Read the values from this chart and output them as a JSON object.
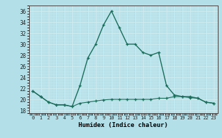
{
  "xlabel": "Humidex (Indice chaleur)",
  "background_color": "#b3e0e8",
  "grid_color": "#e8f8fa",
  "line_color": "#1a6b5a",
  "xlim": [
    -0.5,
    23.5
  ],
  "ylim": [
    17.5,
    37.0
  ],
  "yticks": [
    18,
    20,
    22,
    24,
    26,
    28,
    30,
    32,
    34,
    36
  ],
  "xticks": [
    0,
    1,
    2,
    3,
    4,
    5,
    6,
    7,
    8,
    9,
    10,
    11,
    12,
    13,
    14,
    15,
    16,
    17,
    18,
    19,
    20,
    21,
    22,
    23
  ],
  "series1_x": [
    0,
    1,
    2,
    3,
    4,
    5,
    6,
    7,
    8,
    9,
    10,
    11,
    12,
    13,
    14,
    15,
    16,
    17,
    18,
    19,
    20,
    21,
    22,
    23
  ],
  "series1_y": [
    21.5,
    20.5,
    19.5,
    19.0,
    19.0,
    18.7,
    22.5,
    27.5,
    30.0,
    33.5,
    36.0,
    33.0,
    30.0,
    30.0,
    28.5,
    28.0,
    28.5,
    22.5,
    20.8,
    20.5,
    20.5,
    20.2,
    19.5,
    19.3
  ],
  "series2_x": [
    0,
    1,
    2,
    3,
    4,
    5,
    6,
    7,
    8,
    9,
    10,
    11,
    12,
    13,
    14,
    15,
    16,
    17,
    18,
    19,
    20,
    21,
    22,
    23
  ],
  "series2_y": [
    21.5,
    20.5,
    19.5,
    19.0,
    19.0,
    18.7,
    19.3,
    19.5,
    19.7,
    19.9,
    20.0,
    20.0,
    20.0,
    20.0,
    20.0,
    20.0,
    20.2,
    20.2,
    20.5,
    20.5,
    20.3,
    20.2,
    19.5,
    19.3
  ]
}
